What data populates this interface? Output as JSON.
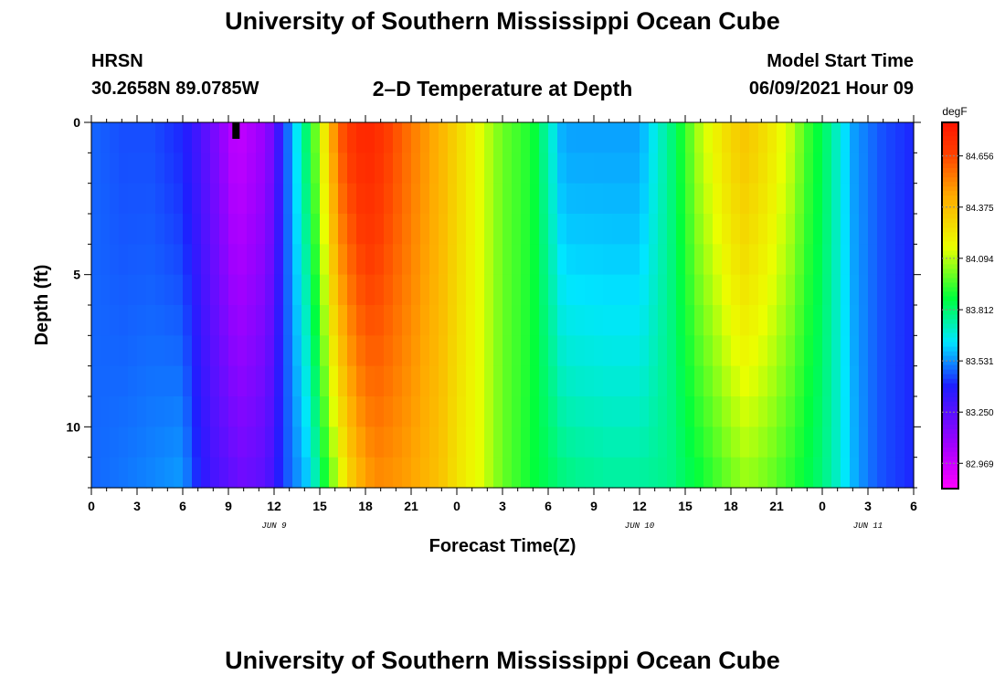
{
  "header": {
    "title": "University of Southern Mississippi Ocean Cube",
    "station": "HRSN",
    "coords": "30.2658N  89.0785W",
    "subtitle": "2–D Temperature at Depth",
    "start_label": "Model Start Time",
    "start_value": "06/09/2021 Hour 09",
    "footer_title": "University of Southern Mississippi Ocean Cube"
  },
  "chart_data": {
    "type": "heatmap",
    "xlabel": "Forecast Time(Z)",
    "ylabel": "Depth (ft)",
    "x_start_hour": 0,
    "x_end_hour": 54,
    "xlim": [
      0,
      54
    ],
    "ylim": [
      12,
      0
    ],
    "x_tick_labels": [
      "0",
      "3",
      "6",
      "9",
      "12",
      "15",
      "18",
      "21",
      "0",
      "3",
      "6",
      "9",
      "12",
      "15",
      "18",
      "21",
      "0",
      "3",
      "6"
    ],
    "y_ticks": [
      0,
      5,
      10
    ],
    "y_tick_labels": [
      "0",
      "5",
      "10"
    ],
    "date_labels": [
      {
        "label": "JUN 9",
        "hour": 12
      },
      {
        "label": "JUN 10",
        "hour": 36
      },
      {
        "label": "JUN 11",
        "hour": 51
      }
    ],
    "colorbar": {
      "unit": "degF",
      "min": 82.83,
      "max": 84.84,
      "ticks": [
        82.969,
        83.25,
        83.531,
        83.812,
        84.094,
        84.375,
        84.656
      ],
      "tick_labels": [
        "82.969",
        "83.250",
        "83.531",
        "83.812",
        "84.094",
        "84.375",
        "84.656"
      ]
    },
    "model_start_hour": 9.5,
    "temperature_profile": {
      "hours": [
        0,
        2,
        4,
        6,
        7,
        8,
        9.5,
        10,
        11.5,
        12.3,
        13,
        13.8,
        14.4,
        15,
        15.6,
        16.2,
        17,
        18,
        19,
        21,
        23,
        24,
        25.5,
        27,
        29,
        31,
        32,
        34,
        36,
        38,
        40,
        42,
        43,
        44.5,
        46,
        47,
        48,
        49,
        50,
        51,
        52,
        54
      ],
      "surface": [
        83.48,
        83.45,
        83.45,
        83.4,
        83.3,
        83.18,
        82.98,
        83.0,
        83.1,
        83.32,
        83.52,
        83.72,
        83.9,
        84.1,
        84.35,
        84.6,
        84.7,
        84.78,
        84.72,
        84.55,
        84.4,
        84.3,
        84.15,
        84.0,
        83.9,
        83.55,
        83.55,
        83.55,
        83.55,
        83.78,
        84.1,
        84.3,
        84.35,
        84.25,
        84.1,
        83.95,
        83.85,
        83.7,
        83.55,
        83.5,
        83.45,
        83.4
      ],
      "bottom": [
        83.48,
        83.5,
        83.52,
        83.55,
        83.4,
        83.3,
        83.22,
        83.2,
        83.25,
        83.38,
        83.48,
        83.55,
        83.62,
        83.8,
        83.95,
        84.1,
        84.3,
        84.45,
        84.5,
        84.45,
        84.35,
        84.25,
        84.15,
        84.0,
        83.88,
        83.8,
        83.78,
        83.76,
        83.76,
        83.78,
        83.88,
        84.0,
        84.05,
        84.0,
        83.92,
        83.86,
        83.8,
        83.7,
        83.58,
        83.5,
        83.45,
        83.4
      ]
    }
  }
}
